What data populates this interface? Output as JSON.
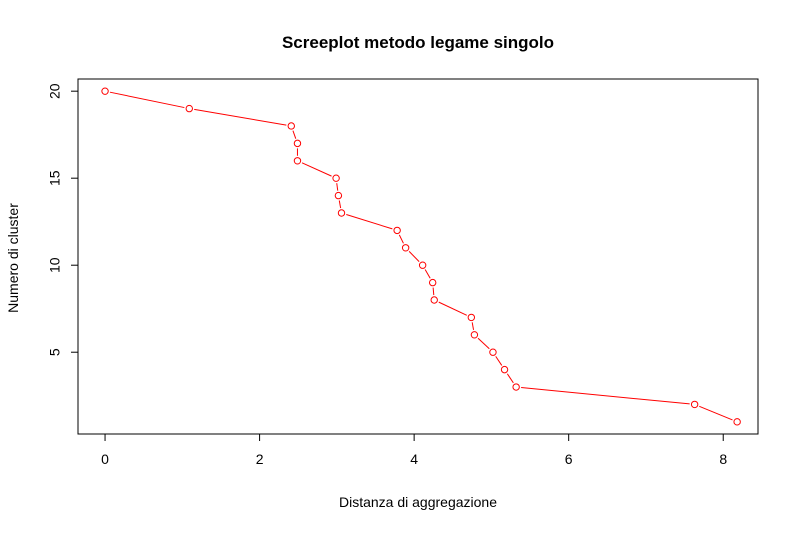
{
  "chart_data": {
    "type": "line",
    "title": "Screeplot metodo legame singolo",
    "xlabel": "Distanza  di  aggregazione",
    "ylabel": "Numero  di  cluster",
    "xlim": [
      -0.35,
      8.45
    ],
    "ylim": [
      0.3,
      20.7
    ],
    "x_ticks": [
      0,
      2,
      4,
      6,
      8
    ],
    "y_ticks": [
      5,
      10,
      15,
      20
    ],
    "grid": false,
    "legend": "none",
    "series": [
      {
        "color": "#ff0000",
        "marker": "open-circle",
        "x": [
          0.0,
          1.09,
          2.41,
          2.49,
          2.49,
          2.99,
          3.02,
          3.06,
          3.78,
          3.89,
          4.11,
          4.24,
          4.26,
          4.74,
          4.78,
          5.02,
          5.17,
          5.32,
          7.63,
          8.18
        ],
        "y": [
          20,
          19,
          18,
          17,
          16,
          15,
          14,
          13,
          12,
          11,
          10,
          9,
          8,
          7,
          6,
          5,
          4,
          3,
          2,
          1
        ]
      }
    ]
  }
}
